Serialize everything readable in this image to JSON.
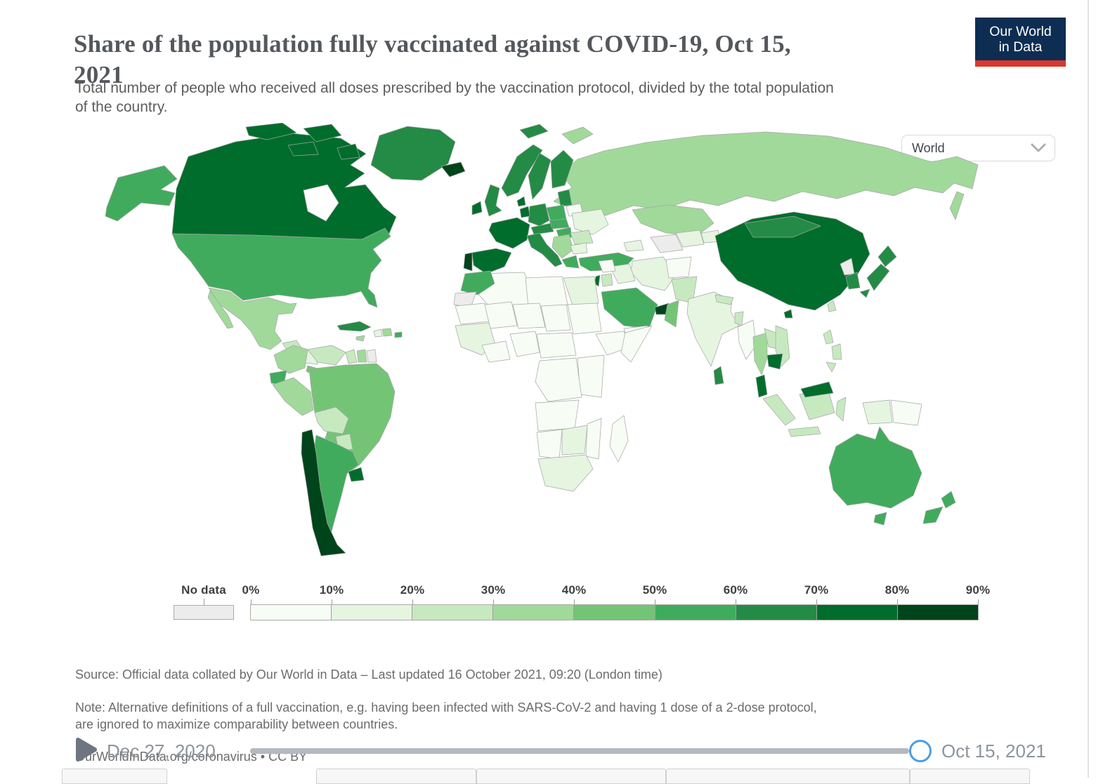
{
  "header": {
    "title": "Share of the population fully vaccinated against COVID-19, Oct 15,\n2021",
    "subtitle": "Total number of people who received all doses prescribed by the vaccination protocol, divided by the total population\nof the country.",
    "logo": {
      "line1": "Our World",
      "line2": "in Data",
      "bg_color": "#0d2d52",
      "accent_color": "#d9382e"
    }
  },
  "controls": {
    "region_selector_value": "World"
  },
  "legend": {
    "no_data_label": "No data",
    "tick_labels": [
      "0%",
      "10%",
      "20%",
      "30%",
      "40%",
      "50%",
      "60%",
      "70%",
      "80%",
      "90%"
    ]
  },
  "map": {
    "no_data_color": "#ececec",
    "bin_colors": [
      "#f7fcf5",
      "#e5f5e0",
      "#c7e9c0",
      "#a1d99b",
      "#74c476",
      "#41ab5d",
      "#238b45",
      "#006d2c",
      "#00441b"
    ]
  },
  "chart_data": {
    "type": "choropleth_map",
    "title": "Share of the population fully vaccinated against COVID-19",
    "date": "Oct 15, 2021",
    "unit": "% of population fully vaccinated",
    "bin_edges_percent": [
      0,
      10,
      20,
      30,
      40,
      50,
      60,
      70,
      80,
      90
    ],
    "legend_position": "bottom",
    "countries": {
      "alaska": 6,
      "canada": 8,
      "canada_islands": 8,
      "greenland": 7,
      "usa": 6,
      "mexico": 4,
      "guatemala": 3,
      "honduras": 2,
      "costarica": 5,
      "panama": 6,
      "cuba": 7,
      "jamaica": 4,
      "haiti": 2,
      "dominicanrep": 4,
      "puertorico": 6,
      "colombia": 4,
      "venezuela": 3,
      "guyana": 3,
      "suriname": 4,
      "frenchguiana": "nd",
      "ecuador": 6,
      "peru": 4,
      "brazil": 5,
      "bolivia": 3,
      "paraguay": 3,
      "chile": 9,
      "argentina": 6,
      "uruguay": 8,
      "iceland": 9,
      "ireland": 8,
      "uk": 7,
      "norway": 7,
      "sweden": 7,
      "finland": 7,
      "denmark": 8,
      "baltics": 7,
      "belarus": 1,
      "poland": 6,
      "germany": 7,
      "benelux": 8,
      "france": 8,
      "spain": 8,
      "portugal": 9,
      "alpine": 7,
      "czechia": 6,
      "hungary": 6,
      "ukraine": 2,
      "romania": 3,
      "italy": 7,
      "balkans": 4,
      "bulgaria": 2,
      "greece": 6,
      "turkey": 6,
      "russia": 4,
      "kazakhstan": 4,
      "turkmenistan": "nd",
      "uzbekistan": 2,
      "kyrgyzstan": 2,
      "caucasus": 2,
      "iran": 2,
      "iraq": 2,
      "syria": 1,
      "israel": 8,
      "jordan": 3,
      "saudiarabia": 6,
      "uae": 9,
      "oman": 5,
      "yemen": 1,
      "morocco": 6,
      "westernsahara": "nd",
      "algeria": 1,
      "libya": 1,
      "egypt": 2,
      "mauritania": 1,
      "mali": 1,
      "niger": 1,
      "chad": 1,
      "sudan": 1,
      "westafrica": 2,
      "ghana": 1,
      "nigeria": 1,
      "cameroon": 1,
      "ethiopia": 1,
      "somalia": 1,
      "kenya": 1,
      "drc": 1,
      "angola": 1,
      "namibia": 1,
      "botswana": 2,
      "mozambique": 1,
      "southafrica": 2,
      "madagascar": 1,
      "afghanistan": 1,
      "pakistan": 3,
      "india": 2,
      "nepal": 3,
      "bangladesh": 3,
      "srilanka": 7,
      "china": 8,
      "mongolia": 7,
      "northkorea": "nd",
      "southkorea": 7,
      "japan": 7,
      "taiwan": 3,
      "myanmar": 1,
      "thailand": 4,
      "laos": 3,
      "vietnam": 3,
      "cambodia": 8,
      "malaysia": 8,
      "indonesia": 3,
      "westpapua": 2,
      "png": 1,
      "philippines": 3,
      "australia": 6,
      "newzealand": 6
    }
  },
  "footer": {
    "source_line": "Source: Official data collated by Our World in Data – Last updated 16 October 2021, 09:20 (London time)",
    "note_line": "Note: Alternative definitions of a full vaccination, e.g. having been infected with SARS-CoV-2 and having 1 dose of a 2-dose protocol,\nare ignored to maximize comparability between countries.",
    "link_line": "OurWorldInData.org/coronavirus • CC BY"
  },
  "timeline": {
    "start_label": "Dec 27, 2020",
    "end_label": "Oct 15, 2021",
    "handle_color": "#4a9ee0"
  }
}
